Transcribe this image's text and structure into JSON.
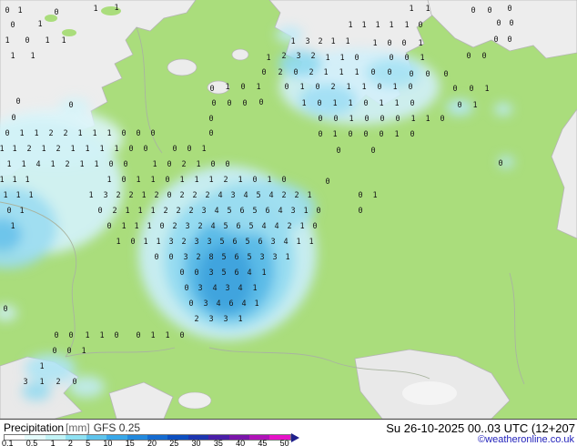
{
  "legend": {
    "title": "Precipitation",
    "unit": "[mm]",
    "model": "GFS 0.25",
    "timestamp": "Su 26-10-2025 00..03 UTC (12+207",
    "copyright": "©weatheronline.co.uk",
    "arrow_color": "#20208c",
    "scale": [
      {
        "label": "0.1",
        "color": "#ffffff"
      },
      {
        "label": "0.5",
        "color": "#e4fbfb"
      },
      {
        "label": "1",
        "color": "#c2f3f6"
      },
      {
        "label": "2",
        "color": "#8fe1f2"
      },
      {
        "label": "5",
        "color": "#5fc4ec"
      },
      {
        "label": "10",
        "color": "#38a7e8"
      },
      {
        "label": "15",
        "color": "#2389dd"
      },
      {
        "label": "20",
        "color": "#156bd0"
      },
      {
        "label": "25",
        "color": "#0d4fc0"
      },
      {
        "label": "30",
        "color": "#1d36b0"
      },
      {
        "label": "35",
        "color": "#4a1fa8"
      },
      {
        "label": "40",
        "color": "#7a15aa"
      },
      {
        "label": "45",
        "color": "#b013b8"
      },
      {
        "label": "50",
        "color": "#e612c8"
      }
    ]
  },
  "map": {
    "colors": {
      "land": "#aadd7c",
      "sea": "#ededed",
      "precip_light": "#d2f1f7",
      "precip_medium": "#92daf1",
      "precip_strong": "#5cbbe7",
      "precip_core": "#3fa4de",
      "value_text": "#161616"
    },
    "values": [
      [
        8,
        14,
        "0"
      ],
      [
        22,
        14,
        "1"
      ],
      [
        62,
        16,
        "0"
      ],
      [
        105,
        12,
        "1"
      ],
      [
        128,
        11,
        "1"
      ],
      [
        14,
        30,
        "0"
      ],
      [
        44,
        29,
        "1"
      ],
      [
        8,
        47,
        "1"
      ],
      [
        30,
        47,
        "0"
      ],
      [
        52,
        47,
        "1"
      ],
      [
        70,
        47,
        "1"
      ],
      [
        14,
        64,
        "1"
      ],
      [
        36,
        64,
        "1"
      ],
      [
        78,
        118,
        "0"
      ],
      [
        20,
        114,
        "0"
      ],
      [
        15,
        132,
        "0"
      ],
      [
        452,
        12,
        "1"
      ],
      [
        470,
        12,
        "1"
      ],
      [
        520,
        14,
        "0"
      ],
      [
        538,
        14,
        "0"
      ],
      [
        560,
        12,
        "0"
      ],
      [
        385,
        30,
        "1"
      ],
      [
        400,
        30,
        "1"
      ],
      [
        415,
        30,
        "1"
      ],
      [
        430,
        30,
        "1"
      ],
      [
        447,
        30,
        "1"
      ],
      [
        462,
        30,
        "0"
      ],
      [
        548,
        28,
        "0"
      ],
      [
        562,
        28,
        "0"
      ],
      [
        322,
        48,
        "1"
      ],
      [
        338,
        48,
        "3"
      ],
      [
        352,
        48,
        "2"
      ],
      [
        366,
        48,
        "1"
      ],
      [
        382,
        48,
        "1"
      ],
      [
        412,
        50,
        "1"
      ],
      [
        428,
        50,
        "0"
      ],
      [
        444,
        50,
        "0"
      ],
      [
        462,
        50,
        "1"
      ],
      [
        545,
        46,
        "0"
      ],
      [
        560,
        46,
        "0"
      ],
      [
        295,
        66,
        "1"
      ],
      [
        312,
        64,
        "2"
      ],
      [
        328,
        64,
        "3"
      ],
      [
        344,
        64,
        "2"
      ],
      [
        360,
        66,
        "1"
      ],
      [
        376,
        66,
        "1"
      ],
      [
        392,
        66,
        "0"
      ],
      [
        430,
        66,
        "0"
      ],
      [
        447,
        66,
        "0"
      ],
      [
        464,
        66,
        "1"
      ],
      [
        515,
        64,
        "0"
      ],
      [
        532,
        64,
        "0"
      ],
      [
        290,
        82,
        "0"
      ],
      [
        308,
        82,
        "2"
      ],
      [
        325,
        82,
        "0"
      ],
      [
        342,
        82,
        "2"
      ],
      [
        358,
        82,
        "1"
      ],
      [
        375,
        82,
        "1"
      ],
      [
        392,
        82,
        "1"
      ],
      [
        410,
        82,
        "0"
      ],
      [
        428,
        82,
        "0"
      ],
      [
        452,
        84,
        "0"
      ],
      [
        470,
        84,
        "0"
      ],
      [
        490,
        84,
        "0"
      ],
      [
        233,
        100,
        "0"
      ],
      [
        250,
        98,
        "1"
      ],
      [
        267,
        98,
        "0"
      ],
      [
        284,
        98,
        "1"
      ],
      [
        315,
        98,
        "0"
      ],
      [
        332,
        98,
        "1"
      ],
      [
        349,
        98,
        "0"
      ],
      [
        366,
        98,
        "2"
      ],
      [
        383,
        98,
        "1"
      ],
      [
        400,
        98,
        "1"
      ],
      [
        417,
        98,
        "0"
      ],
      [
        434,
        98,
        "1"
      ],
      [
        451,
        98,
        "0"
      ],
      [
        500,
        100,
        "0"
      ],
      [
        518,
        100,
        "0"
      ],
      [
        535,
        100,
        "1"
      ],
      [
        235,
        116,
        "0"
      ],
      [
        252,
        116,
        "0"
      ],
      [
        269,
        116,
        "0"
      ],
      [
        287,
        115,
        "0"
      ],
      [
        334,
        116,
        "1"
      ],
      [
        351,
        116,
        "0"
      ],
      [
        368,
        116,
        "1"
      ],
      [
        385,
        116,
        "1"
      ],
      [
        402,
        116,
        "0"
      ],
      [
        419,
        116,
        "1"
      ],
      [
        436,
        116,
        "1"
      ],
      [
        453,
        116,
        "0"
      ],
      [
        505,
        118,
        "0"
      ],
      [
        522,
        118,
        "1"
      ],
      [
        232,
        133,
        "0"
      ],
      [
        352,
        133,
        "0"
      ],
      [
        369,
        133,
        "0"
      ],
      [
        386,
        133,
        "1"
      ],
      [
        403,
        133,
        "0"
      ],
      [
        420,
        133,
        "0"
      ],
      [
        437,
        133,
        "0"
      ],
      [
        454,
        133,
        "1"
      ],
      [
        470,
        133,
        "1"
      ],
      [
        486,
        133,
        "0"
      ],
      [
        8,
        149,
        "0"
      ],
      [
        24,
        149,
        "1"
      ],
      [
        40,
        149,
        "1"
      ],
      [
        56,
        149,
        "2"
      ],
      [
        72,
        149,
        "2"
      ],
      [
        88,
        149,
        "1"
      ],
      [
        104,
        149,
        "1"
      ],
      [
        120,
        149,
        "1"
      ],
      [
        136,
        149,
        "0"
      ],
      [
        152,
        149,
        "0"
      ],
      [
        168,
        149,
        "0"
      ],
      [
        232,
        149,
        "0"
      ],
      [
        352,
        150,
        "0"
      ],
      [
        368,
        150,
        "1"
      ],
      [
        385,
        150,
        "0"
      ],
      [
        402,
        150,
        "0"
      ],
      [
        419,
        150,
        "0"
      ],
      [
        436,
        150,
        "1"
      ],
      [
        453,
        150,
        "0"
      ],
      [
        2,
        166,
        "1"
      ],
      [
        16,
        166,
        "1"
      ],
      [
        32,
        166,
        "2"
      ],
      [
        48,
        166,
        "1"
      ],
      [
        64,
        166,
        "2"
      ],
      [
        80,
        166,
        "1"
      ],
      [
        96,
        166,
        "1"
      ],
      [
        112,
        166,
        "1"
      ],
      [
        128,
        166,
        "1"
      ],
      [
        144,
        166,
        "0"
      ],
      [
        160,
        166,
        "0"
      ],
      [
        192,
        166,
        "0"
      ],
      [
        208,
        166,
        "0"
      ],
      [
        224,
        166,
        "1"
      ],
      [
        372,
        168,
        "0"
      ],
      [
        410,
        168,
        "0"
      ],
      [
        10,
        183,
        "1"
      ],
      [
        26,
        183,
        "1"
      ],
      [
        42,
        183,
        "4"
      ],
      [
        58,
        183,
        "1"
      ],
      [
        74,
        183,
        "2"
      ],
      [
        90,
        183,
        "1"
      ],
      [
        106,
        183,
        "1"
      ],
      [
        122,
        183,
        "0"
      ],
      [
        138,
        183,
        "0"
      ],
      [
        170,
        183,
        "1"
      ],
      [
        186,
        183,
        "0"
      ],
      [
        202,
        183,
        "2"
      ],
      [
        218,
        183,
        "1"
      ],
      [
        234,
        183,
        "0"
      ],
      [
        250,
        183,
        "0"
      ],
      [
        550,
        182,
        "0"
      ],
      [
        2,
        200,
        "1"
      ],
      [
        16,
        200,
        "1"
      ],
      [
        30,
        200,
        "1"
      ],
      [
        120,
        200,
        "1"
      ],
      [
        136,
        200,
        "0"
      ],
      [
        152,
        200,
        "1"
      ],
      [
        168,
        200,
        "1"
      ],
      [
        184,
        200,
        "0"
      ],
      [
        200,
        200,
        "1"
      ],
      [
        216,
        200,
        "1"
      ],
      [
        232,
        200,
        "1"
      ],
      [
        248,
        200,
        "2"
      ],
      [
        264,
        200,
        "1"
      ],
      [
        280,
        200,
        "0"
      ],
      [
        296,
        200,
        "1"
      ],
      [
        312,
        200,
        "0"
      ],
      [
        360,
        202,
        "0"
      ],
      [
        6,
        217,
        "1"
      ],
      [
        20,
        217,
        "1"
      ],
      [
        34,
        217,
        "1"
      ],
      [
        100,
        217,
        "1"
      ],
      [
        116,
        217,
        "3"
      ],
      [
        130,
        217,
        "2"
      ],
      [
        144,
        217,
        "2"
      ],
      [
        158,
        217,
        "1"
      ],
      [
        172,
        217,
        "2"
      ],
      [
        186,
        217,
        "0"
      ],
      [
        200,
        217,
        "2"
      ],
      [
        214,
        217,
        "2"
      ],
      [
        228,
        217,
        "2"
      ],
      [
        242,
        217,
        "4"
      ],
      [
        256,
        217,
        "3"
      ],
      [
        270,
        217,
        "4"
      ],
      [
        284,
        217,
        "5"
      ],
      [
        298,
        217,
        "4"
      ],
      [
        312,
        217,
        "2"
      ],
      [
        326,
        217,
        "2"
      ],
      [
        340,
        217,
        "1"
      ],
      [
        396,
        217,
        "0"
      ],
      [
        412,
        217,
        "1"
      ],
      [
        10,
        234,
        "0"
      ],
      [
        24,
        234,
        "1"
      ],
      [
        110,
        234,
        "0"
      ],
      [
        126,
        234,
        "2"
      ],
      [
        140,
        234,
        "1"
      ],
      [
        154,
        234,
        "1"
      ],
      [
        168,
        234,
        "1"
      ],
      [
        182,
        234,
        "2"
      ],
      [
        196,
        234,
        "2"
      ],
      [
        210,
        234,
        "2"
      ],
      [
        224,
        234,
        "3"
      ],
      [
        238,
        234,
        "4"
      ],
      [
        252,
        234,
        "5"
      ],
      [
        266,
        234,
        "6"
      ],
      [
        280,
        234,
        "5"
      ],
      [
        294,
        234,
        "6"
      ],
      [
        308,
        234,
        "4"
      ],
      [
        322,
        234,
        "3"
      ],
      [
        336,
        234,
        "1"
      ],
      [
        350,
        234,
        "0"
      ],
      [
        396,
        234,
        "0"
      ],
      [
        14,
        251,
        "1"
      ],
      [
        120,
        251,
        "0"
      ],
      [
        136,
        251,
        "1"
      ],
      [
        150,
        251,
        "1"
      ],
      [
        164,
        251,
        "1"
      ],
      [
        178,
        251,
        "0"
      ],
      [
        192,
        251,
        "2"
      ],
      [
        206,
        251,
        "3"
      ],
      [
        220,
        251,
        "2"
      ],
      [
        234,
        251,
        "4"
      ],
      [
        248,
        251,
        "5"
      ],
      [
        262,
        251,
        "6"
      ],
      [
        276,
        251,
        "5"
      ],
      [
        290,
        251,
        "4"
      ],
      [
        304,
        251,
        "4"
      ],
      [
        318,
        251,
        "2"
      ],
      [
        332,
        251,
        "1"
      ],
      [
        346,
        251,
        "0"
      ],
      [
        130,
        268,
        "1"
      ],
      [
        146,
        268,
        "0"
      ],
      [
        160,
        268,
        "1"
      ],
      [
        174,
        268,
        "1"
      ],
      [
        188,
        268,
        "3"
      ],
      [
        202,
        268,
        "2"
      ],
      [
        216,
        268,
        "3"
      ],
      [
        230,
        268,
        "3"
      ],
      [
        244,
        268,
        "5"
      ],
      [
        258,
        268,
        "6"
      ],
      [
        272,
        268,
        "5"
      ],
      [
        286,
        268,
        "6"
      ],
      [
        300,
        268,
        "3"
      ],
      [
        314,
        268,
        "4"
      ],
      [
        328,
        268,
        "1"
      ],
      [
        342,
        268,
        "1"
      ],
      [
        172,
        285,
        "0"
      ],
      [
        188,
        285,
        "0"
      ],
      [
        204,
        285,
        "3"
      ],
      [
        218,
        285,
        "2"
      ],
      [
        232,
        285,
        "8"
      ],
      [
        246,
        285,
        "5"
      ],
      [
        260,
        285,
        "6"
      ],
      [
        274,
        285,
        "5"
      ],
      [
        288,
        285,
        "3"
      ],
      [
        302,
        285,
        "3"
      ],
      [
        316,
        285,
        "1"
      ],
      [
        200,
        302,
        "0"
      ],
      [
        216,
        302,
        "0"
      ],
      [
        232,
        302,
        "3"
      ],
      [
        246,
        302,
        "5"
      ],
      [
        260,
        302,
        "6"
      ],
      [
        274,
        302,
        "4"
      ],
      [
        290,
        302,
        "1"
      ],
      [
        205,
        319,
        "0"
      ],
      [
        220,
        319,
        "3"
      ],
      [
        236,
        319,
        "4"
      ],
      [
        250,
        319,
        "3"
      ],
      [
        264,
        319,
        "4"
      ],
      [
        280,
        319,
        "1"
      ],
      [
        210,
        336,
        "0"
      ],
      [
        226,
        336,
        "3"
      ],
      [
        240,
        336,
        "4"
      ],
      [
        254,
        336,
        "6"
      ],
      [
        268,
        336,
        "4"
      ],
      [
        282,
        336,
        "1"
      ],
      [
        216,
        353,
        "2"
      ],
      [
        232,
        353,
        "3"
      ],
      [
        248,
        353,
        "3"
      ],
      [
        264,
        353,
        "1"
      ],
      [
        6,
        342,
        "0"
      ],
      [
        62,
        371,
        "0"
      ],
      [
        78,
        371,
        "0"
      ],
      [
        96,
        371,
        "1"
      ],
      [
        112,
        371,
        "1"
      ],
      [
        128,
        371,
        "0"
      ],
      [
        152,
        371,
        "0"
      ],
      [
        168,
        371,
        "1"
      ],
      [
        184,
        371,
        "1"
      ],
      [
        200,
        371,
        "0"
      ],
      [
        60,
        388,
        "0"
      ],
      [
        76,
        388,
        "0"
      ],
      [
        92,
        388,
        "1"
      ],
      [
        46,
        405,
        "1"
      ],
      [
        28,
        422,
        "3"
      ],
      [
        46,
        422,
        "1"
      ],
      [
        64,
        422,
        "2"
      ],
      [
        82,
        422,
        "0"
      ]
    ]
  }
}
